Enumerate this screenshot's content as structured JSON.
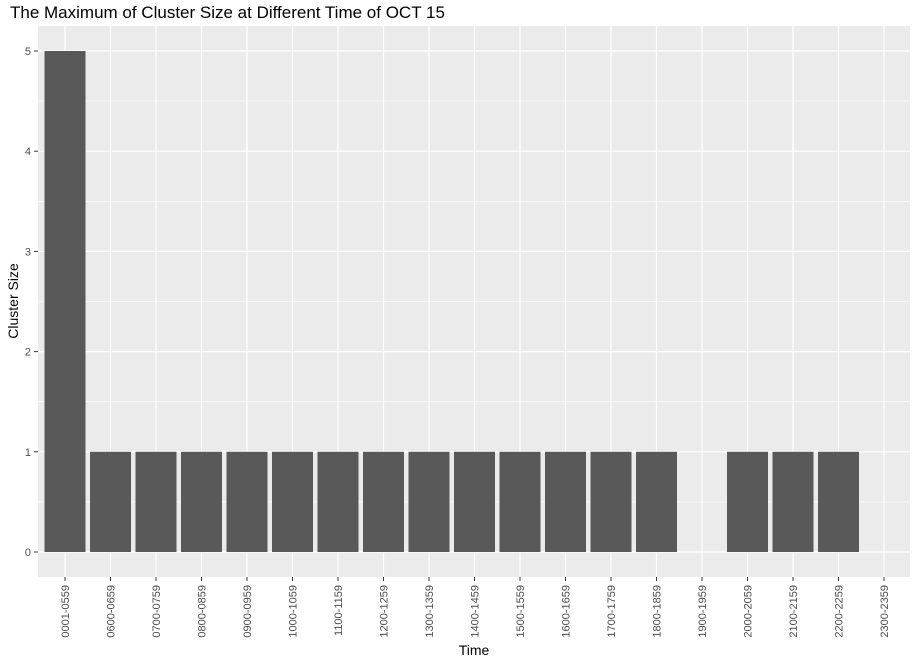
{
  "chart_data": {
    "type": "bar",
    "title": "The Maximum of Cluster Size at Different Time of OCT 15",
    "xlabel": "Time",
    "ylabel": "Cluster Size",
    "categories": [
      "0001-0559",
      "0600-0659",
      "0700-0759",
      "0800-0859",
      "0900-0959",
      "1000-1059",
      "1100-1159",
      "1200-1259",
      "1300-1359",
      "1400-1459",
      "1500-1559",
      "1600-1659",
      "1700-1759",
      "1800-1859",
      "1900-1959",
      "2000-2059",
      "2100-2159",
      "2200-2259",
      "2300-2359"
    ],
    "values": [
      5,
      1,
      1,
      1,
      1,
      1,
      1,
      1,
      1,
      1,
      1,
      1,
      1,
      1,
      0,
      1,
      1,
      1,
      0
    ],
    "ylim": [
      0,
      5
    ],
    "yticks": [
      0,
      1,
      2,
      3,
      4,
      5
    ],
    "grid": true,
    "legend": "none",
    "colors": {
      "bar": "#595959",
      "panel": "#ebebeb",
      "grid_major": "#ffffff",
      "tick_label": "#4d4d4d",
      "text": "#000000"
    }
  }
}
